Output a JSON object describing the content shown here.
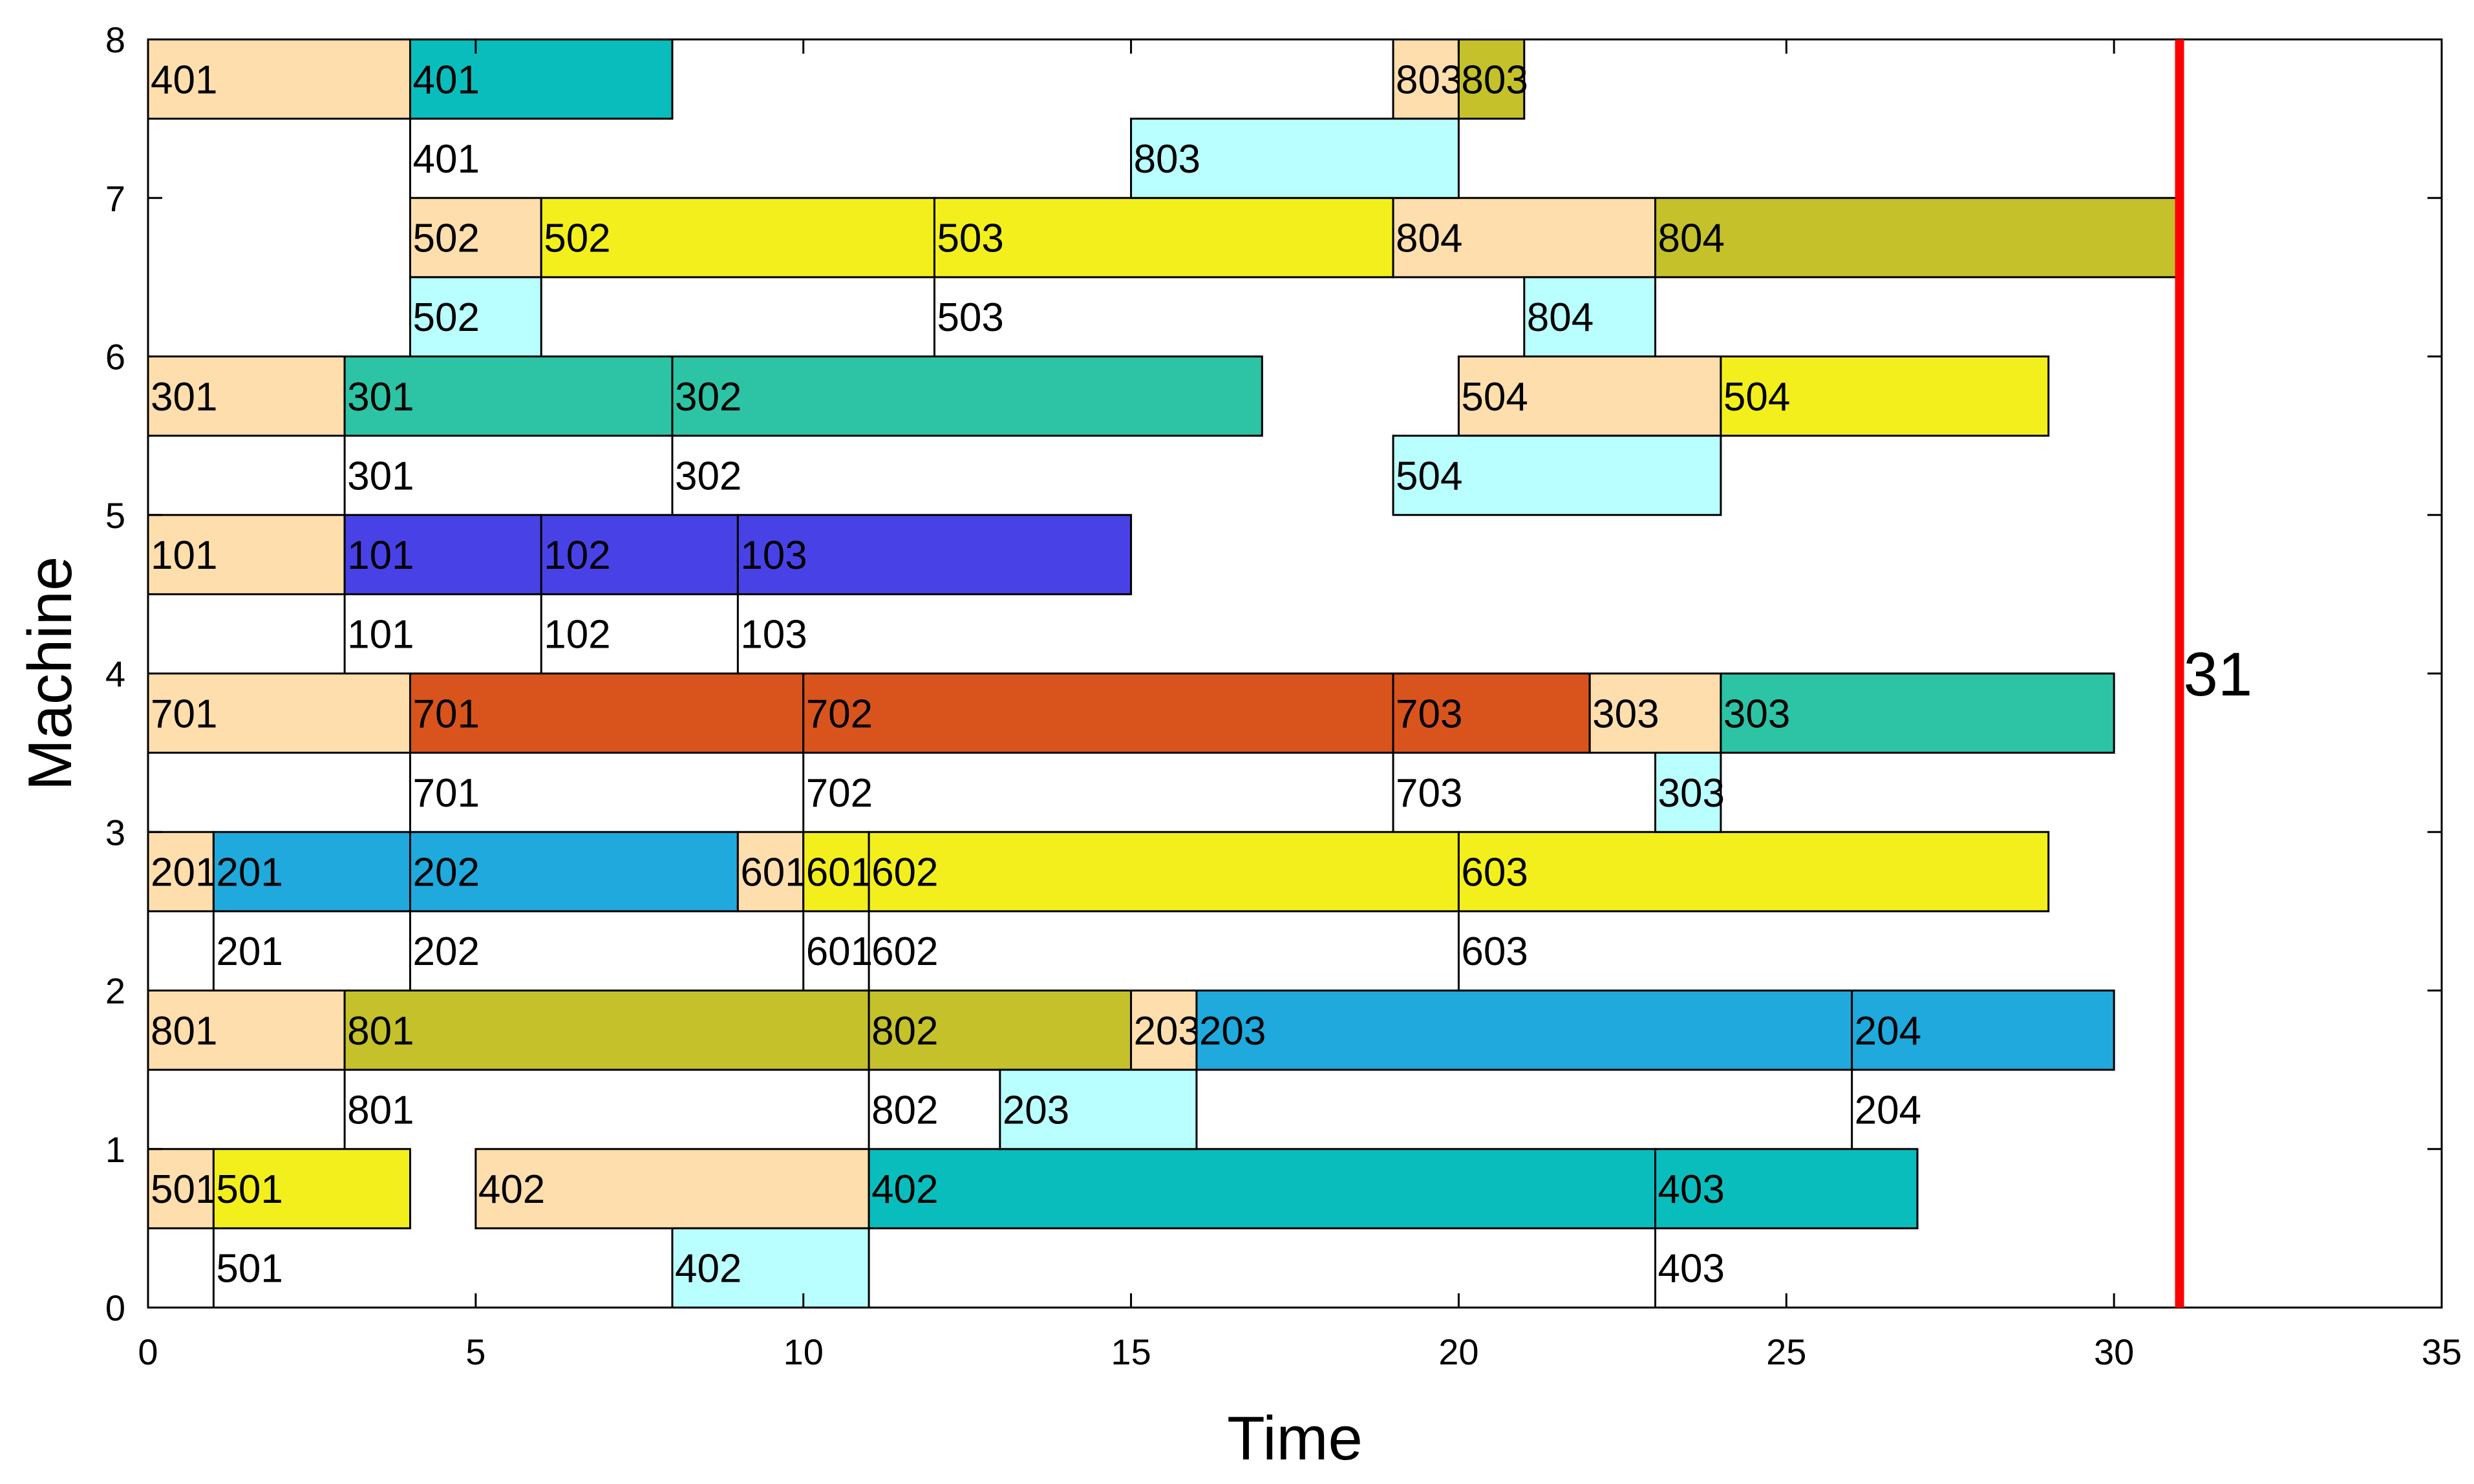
{
  "chart_data": {
    "type": "gantt",
    "title": "",
    "xlabel": "Time",
    "ylabel": "Machine",
    "xlim": [
      0,
      35
    ],
    "ylim": [
      0,
      8
    ],
    "xticks": [
      0,
      5,
      10,
      15,
      20,
      25,
      30,
      35
    ],
    "yticks": [
      0,
      1,
      2,
      3,
      4,
      5,
      6,
      7,
      8
    ],
    "grid": false,
    "makespan": {
      "value": 31,
      "label": "31",
      "color": "#ff0000"
    },
    "colors": {
      "setup": "#ffdead",
      "transport": "#b9ffff",
      "job1": "#4842e6",
      "job2": "#1fa9dd",
      "job3": "#2cc4a5",
      "job4": "#0abdbd",
      "job5": "#f3ef1c",
      "job6": "#f3ef1c",
      "job7": "#d8541c",
      "job8": "#c4c12b"
    },
    "rows": [
      {
        "machine": 1,
        "bars": [
          {
            "start": 0,
            "end": 1,
            "label": "501",
            "kind": "setup"
          },
          {
            "start": 1,
            "end": 4,
            "label": "501",
            "kind": "job5"
          },
          {
            "start": 5,
            "end": 11,
            "label": "402",
            "kind": "setup"
          },
          {
            "start": 11,
            "end": 23,
            "label": "402",
            "kind": "job4"
          },
          {
            "start": 23,
            "end": 27,
            "label": "403",
            "kind": "job4"
          }
        ],
        "lower": [
          {
            "start": 1,
            "end": 1,
            "label": "501",
            "kind": "line"
          },
          {
            "start": 8,
            "end": 11,
            "label": "402",
            "kind": "transport"
          },
          {
            "start": 23,
            "end": 23,
            "label": "403",
            "kind": "line"
          }
        ]
      },
      {
        "machine": 2,
        "bars": [
          {
            "start": 0,
            "end": 3,
            "label": "801",
            "kind": "setup"
          },
          {
            "start": 3,
            "end": 11,
            "label": "801",
            "kind": "job8"
          },
          {
            "start": 11,
            "end": 15,
            "label": "802",
            "kind": "job8"
          },
          {
            "start": 15,
            "end": 16,
            "label": "203",
            "kind": "setup"
          },
          {
            "start": 16,
            "end": 26,
            "label": "203",
            "kind": "job2"
          },
          {
            "start": 26,
            "end": 30,
            "label": "204",
            "kind": "job2"
          }
        ],
        "lower": [
          {
            "start": 3,
            "end": 3,
            "label": "801",
            "kind": "line"
          },
          {
            "start": 11,
            "end": 11,
            "label": "802",
            "kind": "line"
          },
          {
            "start": 13,
            "end": 16,
            "label": "203",
            "kind": "transport"
          },
          {
            "start": 26,
            "end": 26,
            "label": "204",
            "kind": "line"
          }
        ]
      },
      {
        "machine": 3,
        "bars": [
          {
            "start": 0,
            "end": 1,
            "label": "201",
            "kind": "setup"
          },
          {
            "start": 1,
            "end": 4,
            "label": "201",
            "kind": "job2"
          },
          {
            "start": 4,
            "end": 9,
            "label": "202",
            "kind": "job2"
          },
          {
            "start": 9,
            "end": 10,
            "label": "601",
            "kind": "setup"
          },
          {
            "start": 10,
            "end": 11,
            "label": "601",
            "kind": "job6"
          },
          {
            "start": 11,
            "end": 20,
            "label": "602",
            "kind": "job6"
          },
          {
            "start": 20,
            "end": 29,
            "label": "603",
            "kind": "job6"
          }
        ],
        "lower": [
          {
            "start": 1,
            "end": 1,
            "label": "201",
            "kind": "line"
          },
          {
            "start": 4,
            "end": 4,
            "label": "202",
            "kind": "line"
          },
          {
            "start": 10,
            "end": 10,
            "label": "601",
            "kind": "line"
          },
          {
            "start": 11,
            "end": 11,
            "label": "602",
            "kind": "line"
          },
          {
            "start": 20,
            "end": 20,
            "label": "603",
            "kind": "line"
          }
        ]
      },
      {
        "machine": 4,
        "bars": [
          {
            "start": 0,
            "end": 4,
            "label": "701",
            "kind": "setup"
          },
          {
            "start": 4,
            "end": 10,
            "label": "701",
            "kind": "job7"
          },
          {
            "start": 10,
            "end": 19,
            "label": "702",
            "kind": "job7"
          },
          {
            "start": 19,
            "end": 22,
            "label": "703",
            "kind": "job7"
          },
          {
            "start": 22,
            "end": 24,
            "label": "303",
            "kind": "setup"
          },
          {
            "start": 24,
            "end": 30,
            "label": "303",
            "kind": "job3"
          }
        ],
        "lower": [
          {
            "start": 4,
            "end": 4,
            "label": "701",
            "kind": "line"
          },
          {
            "start": 10,
            "end": 10,
            "label": "702",
            "kind": "line"
          },
          {
            "start": 19,
            "end": 19,
            "label": "703",
            "kind": "line"
          },
          {
            "start": 23,
            "end": 24,
            "label": "303",
            "kind": "transport"
          }
        ]
      },
      {
        "machine": 5,
        "bars": [
          {
            "start": 0,
            "end": 3,
            "label": "101",
            "kind": "setup"
          },
          {
            "start": 3,
            "end": 6,
            "label": "101",
            "kind": "job1"
          },
          {
            "start": 6,
            "end": 9,
            "label": "102",
            "kind": "job1"
          },
          {
            "start": 9,
            "end": 15,
            "label": "103",
            "kind": "job1"
          }
        ],
        "lower": [
          {
            "start": 3,
            "end": 3,
            "label": "101",
            "kind": "line"
          },
          {
            "start": 6,
            "end": 6,
            "label": "102",
            "kind": "line"
          },
          {
            "start": 9,
            "end": 9,
            "label": "103",
            "kind": "line"
          }
        ]
      },
      {
        "machine": 6,
        "bars": [
          {
            "start": 0,
            "end": 3,
            "label": "301",
            "kind": "setup"
          },
          {
            "start": 3,
            "end": 8,
            "label": "301",
            "kind": "job3"
          },
          {
            "start": 8,
            "end": 17,
            "label": "302",
            "kind": "job3"
          },
          {
            "start": 20,
            "end": 24,
            "label": "504",
            "kind": "setup"
          },
          {
            "start": 24,
            "end": 29,
            "label": "504",
            "kind": "job5"
          }
        ],
        "lower": [
          {
            "start": 3,
            "end": 3,
            "label": "301",
            "kind": "line"
          },
          {
            "start": 8,
            "end": 8,
            "label": "302",
            "kind": "line"
          },
          {
            "start": 19,
            "end": 24,
            "label": "504",
            "kind": "transport"
          }
        ]
      },
      {
        "machine": 7,
        "bars": [
          {
            "start": 4,
            "end": 6,
            "label": "502",
            "kind": "setup"
          },
          {
            "start": 6,
            "end": 12,
            "label": "502",
            "kind": "job5"
          },
          {
            "start": 12,
            "end": 19,
            "label": "503",
            "kind": "job5"
          },
          {
            "start": 19,
            "end": 23,
            "label": "804",
            "kind": "setup"
          },
          {
            "start": 23,
            "end": 31,
            "label": "804",
            "kind": "job8"
          }
        ],
        "lower": [
          {
            "start": 4,
            "end": 6,
            "label": "502",
            "kind": "transport"
          },
          {
            "start": 12,
            "end": 12,
            "label": "503",
            "kind": "line"
          },
          {
            "start": 21,
            "end": 23,
            "label": "804",
            "kind": "transport"
          }
        ]
      },
      {
        "machine": 8,
        "bars": [
          {
            "start": 0,
            "end": 4,
            "label": "401",
            "kind": "setup"
          },
          {
            "start": 4,
            "end": 8,
            "label": "401",
            "kind": "job4"
          },
          {
            "start": 19,
            "end": 20,
            "label": "803",
            "kind": "setup"
          },
          {
            "start": 20,
            "end": 21,
            "label": "803",
            "kind": "job8"
          }
        ],
        "lower": [
          {
            "start": 4,
            "end": 4,
            "label": "401",
            "kind": "line"
          },
          {
            "start": 15,
            "end": 20,
            "label": "803",
            "kind": "transport"
          }
        ]
      }
    ]
  }
}
